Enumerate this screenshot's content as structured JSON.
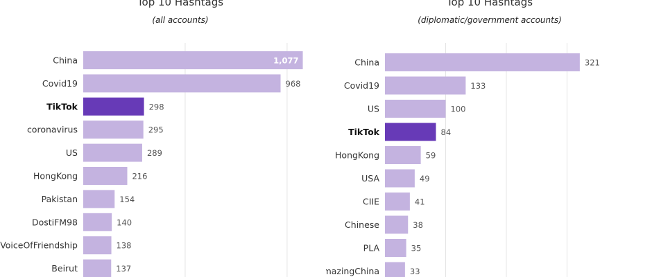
{
  "colors": {
    "bar": "#c4b3e0",
    "bar_highlight": "#673ab7",
    "gridline": "#e4e4e4"
  },
  "chart_data": [
    {
      "type": "bar",
      "orientation": "horizontal",
      "title": "Top 10 Hashtags",
      "subtitle": "(all accounts)",
      "categories": [
        "China",
        "Covid19",
        "TikTok",
        "coronavirus",
        "US",
        "HongKong",
        "Pakistan",
        "DostiFM98",
        "VoiceOfFriendship",
        "Beirut"
      ],
      "values": [
        1077,
        968,
        298,
        295,
        289,
        216,
        154,
        140,
        138,
        137
      ],
      "value_labels": [
        "1,077",
        "968",
        "298",
        "295",
        "289",
        "216",
        "154",
        "140",
        "138",
        "137"
      ],
      "highlight": [
        "TikTok"
      ],
      "xlim": [
        0,
        1150
      ],
      "grid": true
    },
    {
      "type": "bar",
      "orientation": "horizontal",
      "title": "Top 10 Hashtags",
      "subtitle": "(diplomatic/government accounts)",
      "categories": [
        "China",
        "Covid19",
        "US",
        "TikTok",
        "HongKong",
        "USA",
        "CIIE",
        "Chinese",
        "PLA",
        "AmazingChina"
      ],
      "values": [
        321,
        133,
        100,
        84,
        59,
        49,
        41,
        38,
        35,
        33
      ],
      "value_labels": [
        "321",
        "133",
        "100",
        "84",
        "59",
        "49",
        "41",
        "38",
        "35",
        "33"
      ],
      "highlight": [
        "TikTok"
      ],
      "xlim": [
        0,
        360
      ],
      "grid": true
    }
  ]
}
